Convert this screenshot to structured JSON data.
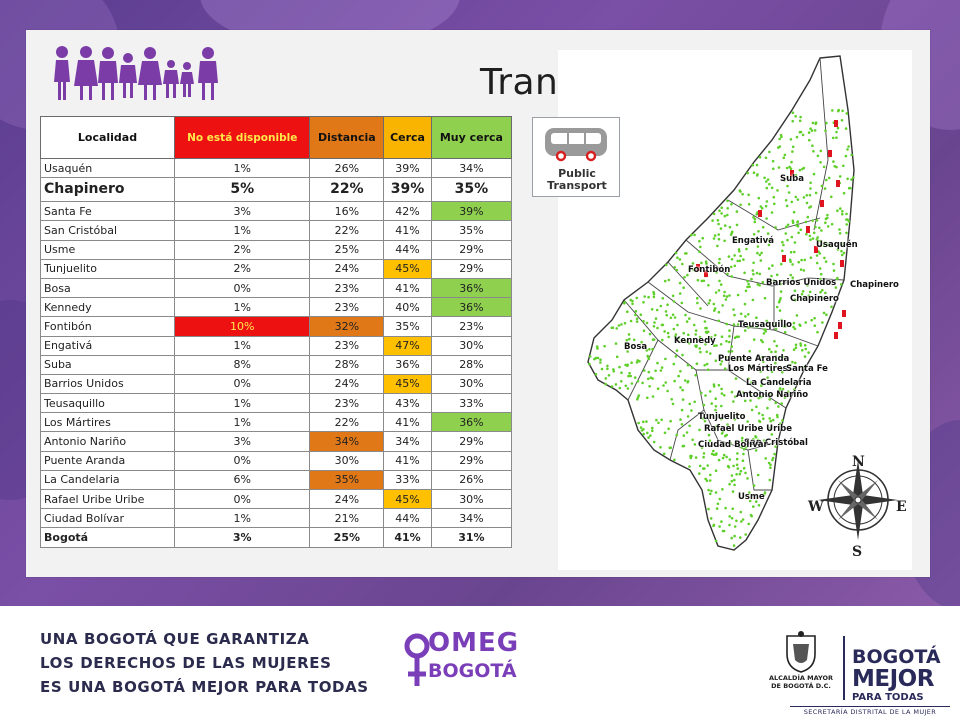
{
  "slide": {
    "title": "Transporte"
  },
  "table": {
    "headers": {
      "localidad": "Localidad",
      "no_disponible": "No está disponible",
      "distancia": "Distancia",
      "cerca": "Cerca",
      "muy_cerca": "Muy cerca"
    },
    "rows": [
      {
        "localidad": "Usaquén",
        "no_disponible": "1%",
        "distancia": "26%",
        "cerca": "39%",
        "muy_cerca": "34%"
      },
      {
        "localidad": "Chapinero",
        "no_disponible": "5%",
        "distancia": "22%",
        "cerca": "39%",
        "muy_cerca": "35%"
      },
      {
        "localidad": "Santa Fe",
        "no_disponible": "3%",
        "distancia": "16%",
        "cerca": "42%",
        "muy_cerca": "39%"
      },
      {
        "localidad": "San Cristóbal",
        "no_disponible": "1%",
        "distancia": "22%",
        "cerca": "41%",
        "muy_cerca": "35%"
      },
      {
        "localidad": "Usme",
        "no_disponible": "2%",
        "distancia": "25%",
        "cerca": "44%",
        "muy_cerca": "29%"
      },
      {
        "localidad": "Tunjuelito",
        "no_disponible": "2%",
        "distancia": "24%",
        "cerca": "45%",
        "muy_cerca": "29%"
      },
      {
        "localidad": "Bosa",
        "no_disponible": "0%",
        "distancia": "23%",
        "cerca": "41%",
        "muy_cerca": "36%"
      },
      {
        "localidad": "Kennedy",
        "no_disponible": "1%",
        "distancia": "23%",
        "cerca": "40%",
        "muy_cerca": "36%"
      },
      {
        "localidad": "Fontibón",
        "no_disponible": "10%",
        "distancia": "32%",
        "cerca": "35%",
        "muy_cerca": "23%"
      },
      {
        "localidad": "Engativá",
        "no_disponible": "1%",
        "distancia": "23%",
        "cerca": "47%",
        "muy_cerca": "30%"
      },
      {
        "localidad": "Suba",
        "no_disponible": "8%",
        "distancia": "28%",
        "cerca": "36%",
        "muy_cerca": "28%"
      },
      {
        "localidad": "Barrios Unidos",
        "no_disponible": "0%",
        "distancia": "24%",
        "cerca": "45%",
        "muy_cerca": "30%"
      },
      {
        "localidad": "Teusaquillo",
        "no_disponible": "1%",
        "distancia": "23%",
        "cerca": "43%",
        "muy_cerca": "33%"
      },
      {
        "localidad": "Los Mártires",
        "no_disponible": "1%",
        "distancia": "22%",
        "cerca": "41%",
        "muy_cerca": "36%"
      },
      {
        "localidad": "Antonio Nariño",
        "no_disponible": "3%",
        "distancia": "34%",
        "cerca": "34%",
        "muy_cerca": "29%"
      },
      {
        "localidad": "Puente Aranda",
        "no_disponible": "0%",
        "distancia": "30%",
        "cerca": "41%",
        "muy_cerca": "29%"
      },
      {
        "localidad": "La Candelaria",
        "no_disponible": "6%",
        "distancia": "35%",
        "cerca": "33%",
        "muy_cerca": "26%"
      },
      {
        "localidad": "Rafael Uribe Uribe",
        "no_disponible": "0%",
        "distancia": "24%",
        "cerca": "45%",
        "muy_cerca": "30%"
      },
      {
        "localidad": "Ciudad Bolívar",
        "no_disponible": "1%",
        "distancia": "21%",
        "cerca": "44%",
        "muy_cerca": "34%"
      },
      {
        "localidad": "Bogotá",
        "no_disponible": "3%",
        "distancia": "25%",
        "cerca": "41%",
        "muy_cerca": "31%"
      }
    ],
    "colors": {
      "no_disponible": "#ee1111",
      "distancia": "#e07818",
      "cerca": "#ffc000",
      "muy_cerca": "#8fd14f"
    }
  },
  "public_transport_icon": {
    "icon": "bus-icon",
    "label_line1": "Public",
    "label_line2": "Transport"
  },
  "map": {
    "labels": {
      "suba": "Suba",
      "engativa": "Engativá",
      "usaquen": "Usaquén",
      "fontibon": "Fontibón",
      "barrios_unidos": "Barrios Unidos",
      "chapinero1": "Chapinero",
      "chapinero2": "Chapinero",
      "teusaquillo": "Teusaquillo",
      "bosa": "Bosa",
      "kennedy": "Kennedy",
      "puente_aranda": "Puente Aranda",
      "los_martires": "Los Mártires",
      "santa_fe": "Santa Fe",
      "la_candelaria": "La Candelaria",
      "antonio_narino": "Antonio Nariño",
      "tunjuelito": "Tunjuelito",
      "rafael_uribe": "Rafael Uribe Uribe",
      "san_cristobal": "San Cristóbal",
      "ciudad_bolivar": "Ciudad Bolívar",
      "usme": "Usme"
    },
    "compass": {
      "n": "N",
      "s": "S",
      "e": "E",
      "w": "W"
    },
    "colors": {
      "stops": "#5fcf2a",
      "highlight": "#e0141e"
    }
  },
  "footer": {
    "line1": "UNA BOGOTÁ QUE GARANTIZA",
    "line2": "LOS DERECHOS DE LAS MUJERES",
    "line3": "ES UNA BOGOTÁ MEJOR PARA TODAS",
    "omeg_line1": "OMEG",
    "omeg_line2": "BOGOTÁ",
    "alcaldia_line1": "ALCALDÍA MAYOR",
    "alcaldia_line2": "DE BOGOTÁ D.C.",
    "bm_line1": "BOGOTÁ",
    "bm_line2": "MEJOR",
    "bm_line3": "PARA TODAS",
    "secretaria": "SECRETARÍA DISTRITAL DE LA MUJER"
  }
}
